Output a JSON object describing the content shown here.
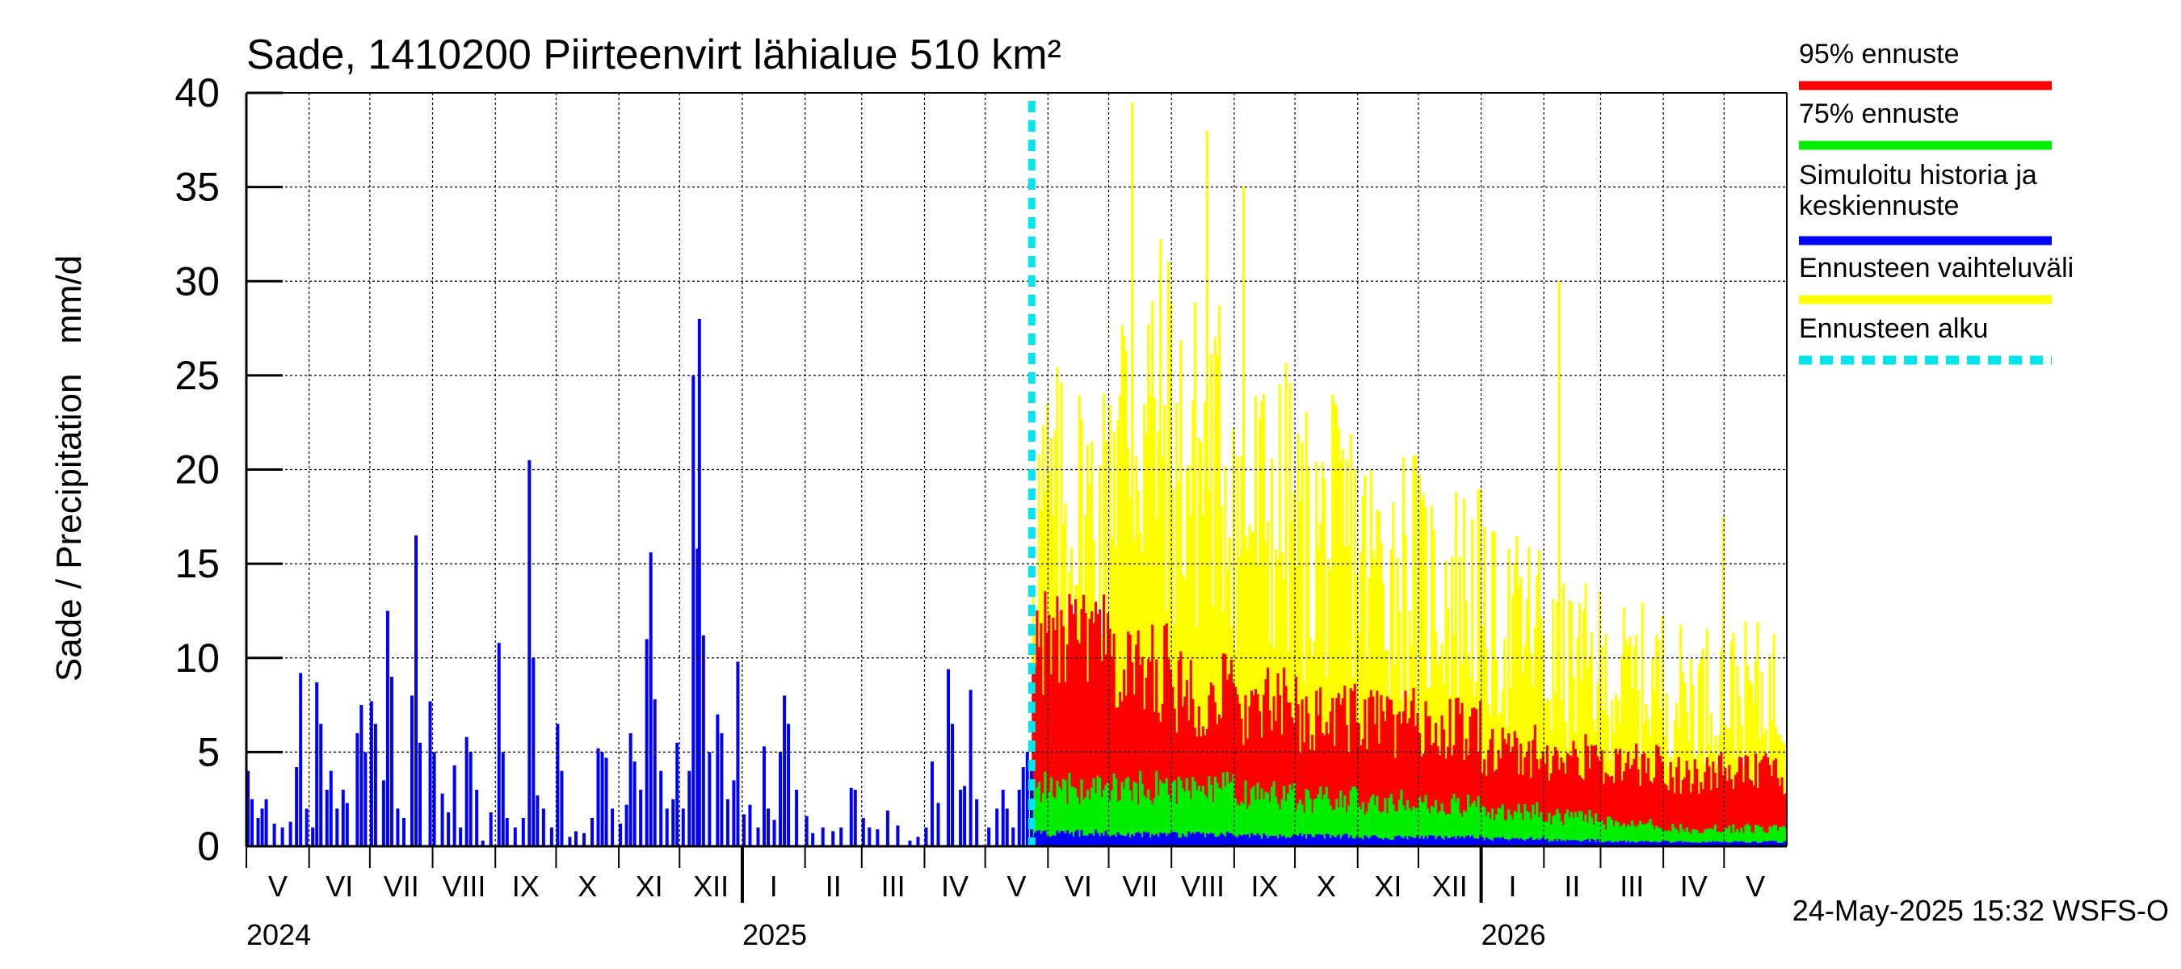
{
  "chart_data": {
    "type": "bar",
    "title": "Sade, 1410200 Piirteenvirt lähialue 510 km²",
    "ylabel": "Sade / Precipitation   mm/d",
    "xlabel": "",
    "ylim": [
      0,
      40
    ],
    "y_ticks": [
      0,
      5,
      10,
      15,
      20,
      25,
      30,
      35,
      40
    ],
    "grid": true,
    "legend_position": "right",
    "x_range": [
      "2024-05-01",
      "2026-05-31"
    ],
    "forecast_start": "2025-05-24",
    "month_labels": [
      {
        "label": "V",
        "start": "2024-05-01"
      },
      {
        "label": "VI",
        "start": "2024-06-01"
      },
      {
        "label": "VII",
        "start": "2024-07-01"
      },
      {
        "label": "VIII",
        "start": "2024-08-01"
      },
      {
        "label": "IX",
        "start": "2024-09-01"
      },
      {
        "label": "X",
        "start": "2024-10-01"
      },
      {
        "label": "XI",
        "start": "2024-11-01"
      },
      {
        "label": "XII",
        "start": "2024-12-01"
      },
      {
        "label": "I",
        "start": "2025-01-01"
      },
      {
        "label": "II",
        "start": "2025-02-01"
      },
      {
        "label": "III",
        "start": "2025-03-01"
      },
      {
        "label": "IV",
        "start": "2025-04-01"
      },
      {
        "label": "V",
        "start": "2025-05-01"
      },
      {
        "label": "VI",
        "start": "2025-06-01"
      },
      {
        "label": "VII",
        "start": "2025-07-01"
      },
      {
        "label": "VIII",
        "start": "2025-08-01"
      },
      {
        "label": "IX",
        "start": "2025-09-01"
      },
      {
        "label": "X",
        "start": "2025-10-01"
      },
      {
        "label": "XI",
        "start": "2025-11-01"
      },
      {
        "label": "XII",
        "start": "2025-12-01"
      },
      {
        "label": "I",
        "start": "2026-01-01"
      },
      {
        "label": "II",
        "start": "2026-02-01"
      },
      {
        "label": "III",
        "start": "2026-03-01"
      },
      {
        "label": "IV",
        "start": "2026-04-01"
      },
      {
        "label": "V",
        "start": "2026-05-01"
      }
    ],
    "year_labels": [
      {
        "label": "2024",
        "date": "2024-05-01"
      },
      {
        "label": "2025",
        "date": "2025-01-01"
      },
      {
        "label": "2026",
        "date": "2026-01-01"
      }
    ],
    "series": [
      {
        "name": "Simuloitu historia ja keskiennuste",
        "color": "#0000ff",
        "kind": "history-bars",
        "points": [
          [
            "2024-05-01",
            4.0
          ],
          [
            "2024-05-03",
            2.5
          ],
          [
            "2024-05-06",
            1.5
          ],
          [
            "2024-05-08",
            2.0
          ],
          [
            "2024-05-10",
            2.5
          ],
          [
            "2024-05-14",
            1.2
          ],
          [
            "2024-05-18",
            1.0
          ],
          [
            "2024-05-22",
            1.3
          ],
          [
            "2024-05-25",
            4.2
          ],
          [
            "2024-05-27",
            9.2
          ],
          [
            "2024-05-30",
            2.0
          ],
          [
            "2024-06-02",
            1.0
          ],
          [
            "2024-06-04",
            8.7
          ],
          [
            "2024-06-06",
            6.5
          ],
          [
            "2024-06-09",
            3.0
          ],
          [
            "2024-06-11",
            4.0
          ],
          [
            "2024-06-14",
            2.0
          ],
          [
            "2024-06-17",
            3.0
          ],
          [
            "2024-06-19",
            2.3
          ],
          [
            "2024-06-24",
            6.0
          ],
          [
            "2024-06-26",
            7.5
          ],
          [
            "2024-06-28",
            5.0
          ],
          [
            "2024-07-01",
            7.7
          ],
          [
            "2024-07-03",
            6.5
          ],
          [
            "2024-07-07",
            3.5
          ],
          [
            "2024-07-09",
            12.5
          ],
          [
            "2024-07-11",
            9.0
          ],
          [
            "2024-07-14",
            2.0
          ],
          [
            "2024-07-17",
            1.5
          ],
          [
            "2024-07-21",
            8.0
          ],
          [
            "2024-07-23",
            16.5
          ],
          [
            "2024-07-25",
            5.5
          ],
          [
            "2024-07-30",
            7.7
          ],
          [
            "2024-08-01",
            5.0
          ],
          [
            "2024-08-05",
            2.8
          ],
          [
            "2024-08-08",
            1.8
          ],
          [
            "2024-08-11",
            4.3
          ],
          [
            "2024-08-14",
            1.0
          ],
          [
            "2024-08-17",
            5.8
          ],
          [
            "2024-08-19",
            5.0
          ],
          [
            "2024-08-22",
            3.0
          ],
          [
            "2024-08-25",
            0.3
          ],
          [
            "2024-08-29",
            1.8
          ],
          [
            "2024-09-02",
            10.8
          ],
          [
            "2024-09-04",
            5.0
          ],
          [
            "2024-09-06",
            1.5
          ],
          [
            "2024-09-10",
            1.0
          ],
          [
            "2024-09-14",
            1.5
          ],
          [
            "2024-09-17",
            20.5
          ],
          [
            "2024-09-19",
            10.0
          ],
          [
            "2024-09-21",
            2.7
          ],
          [
            "2024-09-24",
            2.0
          ],
          [
            "2024-09-28",
            1.0
          ],
          [
            "2024-10-01",
            6.5
          ],
          [
            "2024-10-03",
            4.0
          ],
          [
            "2024-10-07",
            0.5
          ],
          [
            "2024-10-10",
            0.8
          ],
          [
            "2024-10-14",
            0.7
          ],
          [
            "2024-10-18",
            1.5
          ],
          [
            "2024-10-21",
            5.2
          ],
          [
            "2024-10-23",
            5.0
          ],
          [
            "2024-10-25",
            4.7
          ],
          [
            "2024-10-28",
            2.0
          ],
          [
            "2024-11-01",
            1.2
          ],
          [
            "2024-11-04",
            2.2
          ],
          [
            "2024-11-06",
            6.0
          ],
          [
            "2024-11-08",
            4.5
          ],
          [
            "2024-11-11",
            3.0
          ],
          [
            "2024-11-14",
            11.0
          ],
          [
            "2024-11-16",
            15.6
          ],
          [
            "2024-11-18",
            7.8
          ],
          [
            "2024-11-21",
            4.0
          ],
          [
            "2024-11-24",
            2.0
          ],
          [
            "2024-11-27",
            2.5
          ],
          [
            "2024-11-29",
            5.5
          ],
          [
            "2024-12-02",
            2.0
          ],
          [
            "2024-12-05",
            4.0
          ],
          [
            "2024-12-07",
            25.0
          ],
          [
            "2024-12-09",
            15.8
          ],
          [
            "2024-12-10",
            28.0
          ],
          [
            "2024-12-12",
            11.2
          ],
          [
            "2024-12-15",
            5.0
          ],
          [
            "2024-12-19",
            7.0
          ],
          [
            "2024-12-21",
            6.0
          ],
          [
            "2024-12-24",
            2.5
          ],
          [
            "2024-12-27",
            3.5
          ],
          [
            "2024-12-29",
            9.8
          ],
          [
            "2025-01-01",
            1.7
          ],
          [
            "2025-01-04",
            2.2
          ],
          [
            "2025-01-08",
            1.0
          ],
          [
            "2025-01-11",
            5.3
          ],
          [
            "2025-01-13",
            2.0
          ],
          [
            "2025-01-16",
            1.4
          ],
          [
            "2025-01-19",
            5.0
          ],
          [
            "2025-01-21",
            8.0
          ],
          [
            "2025-01-23",
            6.5
          ],
          [
            "2025-01-27",
            3.0
          ],
          [
            "2025-02-01",
            1.6
          ],
          [
            "2025-02-04",
            0.7
          ],
          [
            "2025-02-09",
            1.0
          ],
          [
            "2025-02-14",
            0.8
          ],
          [
            "2025-02-18",
            1.0
          ],
          [
            "2025-02-23",
            3.1
          ],
          [
            "2025-02-25",
            3.0
          ],
          [
            "2025-03-01",
            1.5
          ],
          [
            "2025-03-04",
            1.0
          ],
          [
            "2025-03-08",
            0.9
          ],
          [
            "2025-03-13",
            1.9
          ],
          [
            "2025-03-18",
            1.1
          ],
          [
            "2025-03-24",
            0.3
          ],
          [
            "2025-03-28",
            0.5
          ],
          [
            "2025-04-01",
            1.0
          ],
          [
            "2025-04-04",
            4.5
          ],
          [
            "2025-04-07",
            2.3
          ],
          [
            "2025-04-12",
            9.4
          ],
          [
            "2025-04-14",
            6.5
          ],
          [
            "2025-04-18",
            3.0
          ],
          [
            "2025-04-20",
            3.2
          ],
          [
            "2025-04-23",
            8.3
          ],
          [
            "2025-04-26",
            2.5
          ],
          [
            "2025-05-02",
            1.0
          ],
          [
            "2025-05-06",
            2.0
          ],
          [
            "2025-05-09",
            3.0
          ],
          [
            "2025-05-11",
            2.0
          ],
          [
            "2025-05-14",
            1.0
          ],
          [
            "2025-05-17",
            3.0
          ],
          [
            "2025-05-19",
            4.2
          ],
          [
            "2025-05-21",
            5.0
          ],
          [
            "2025-05-23",
            4.0
          ]
        ]
      },
      {
        "name": "Ennusteen vaihteluväli",
        "color": "#ffff00",
        "kind": "forecast-band",
        "monthly_envelope": [
          [
            "2025-06",
            2.0,
            26.0
          ],
          [
            "2025-07",
            2.5,
            33.0
          ],
          [
            "2025-08",
            2.5,
            30.0
          ],
          [
            "2025-09",
            2.0,
            26.0
          ],
          [
            "2025-10",
            2.0,
            24.0
          ],
          [
            "2025-11",
            2.0,
            22.0
          ],
          [
            "2025-12",
            1.8,
            20.0
          ],
          [
            "2026-01",
            1.5,
            17.0
          ],
          [
            "2026-02",
            1.2,
            14.0
          ],
          [
            "2026-03",
            1.0,
            13.0
          ],
          [
            "2026-04",
            1.0,
            12.0
          ],
          [
            "2026-05",
            1.0,
            12.0
          ]
        ],
        "peaks": [
          [
            "2025-07-12",
            39.5
          ],
          [
            "2025-08-18",
            38.0
          ],
          [
            "2025-09-05",
            35.0
          ],
          [
            "2026-02-08",
            30.0
          ],
          [
            "2026-04-30",
            17.5
          ]
        ]
      },
      {
        "name": "95% ennuste",
        "color": "#ff0000",
        "kind": "forecast-band",
        "monthly_envelope": [
          [
            "2025-06",
            0,
            14.0
          ],
          [
            "2025-07",
            0,
            12.0
          ],
          [
            "2025-08",
            0,
            10.5
          ],
          [
            "2025-09",
            0,
            9.5
          ],
          [
            "2025-10",
            0,
            9.0
          ],
          [
            "2025-11",
            0,
            8.5
          ],
          [
            "2025-12",
            0,
            8.0
          ],
          [
            "2026-01",
            0,
            6.5
          ],
          [
            "2026-02",
            0,
            6.0
          ],
          [
            "2026-03",
            0,
            5.5
          ],
          [
            "2026-04",
            0,
            5.0
          ],
          [
            "2026-05",
            0,
            5.0
          ]
        ]
      },
      {
        "name": "75% ennuste",
        "color": "#00ee00",
        "kind": "forecast-band",
        "monthly_envelope": [
          [
            "2025-06",
            0,
            4.0
          ],
          [
            "2025-07",
            0,
            4.0
          ],
          [
            "2025-08",
            0,
            4.0
          ],
          [
            "2025-09",
            0,
            3.5
          ],
          [
            "2025-10",
            0,
            3.2
          ],
          [
            "2025-11",
            0,
            3.0
          ],
          [
            "2025-12",
            0,
            2.8
          ],
          [
            "2026-01",
            0,
            2.4
          ],
          [
            "2026-02",
            0,
            2.0
          ],
          [
            "2026-03",
            0,
            1.6
          ],
          [
            "2026-04",
            0,
            1.2
          ],
          [
            "2026-05",
            0,
            1.2
          ]
        ]
      },
      {
        "name": "Simuloitu historia ja keskiennuste",
        "color": "#0000ff",
        "kind": "forecast-median",
        "monthly_envelope": [
          [
            "2025-06",
            0,
            0.9
          ],
          [
            "2025-07",
            0,
            0.8
          ],
          [
            "2025-08",
            0,
            0.8
          ],
          [
            "2025-09",
            0,
            0.7
          ],
          [
            "2025-10",
            0,
            0.7
          ],
          [
            "2025-11",
            0,
            0.6
          ],
          [
            "2025-12",
            0,
            0.6
          ],
          [
            "2026-01",
            0,
            0.5
          ],
          [
            "2026-02",
            0,
            0.4
          ],
          [
            "2026-03",
            0,
            0.3
          ],
          [
            "2026-04",
            0,
            0.3
          ],
          [
            "2026-05",
            0,
            0.3
          ]
        ]
      }
    ]
  },
  "legend": {
    "items": [
      {
        "label": "95% ennuste",
        "color": "#ff0000",
        "style": "solid"
      },
      {
        "label": "75% ennuste",
        "color": "#00ee00",
        "style": "solid"
      },
      {
        "label": "Simuloitu historia ja",
        "label2": "keskiennuste",
        "color": "#0000ff",
        "style": "solid"
      },
      {
        "label": "Ennusteen vaihteluväli",
        "color": "#ffff00",
        "style": "solid"
      },
      {
        "label": "Ennusteen alku",
        "color": "#00e5ee",
        "style": "dashed"
      }
    ]
  },
  "footer": {
    "timestamp": "24-May-2025 15:32 WSFS-O"
  },
  "colors": {
    "forecast_start_line": "#00e5ee",
    "grid": "#000000"
  }
}
